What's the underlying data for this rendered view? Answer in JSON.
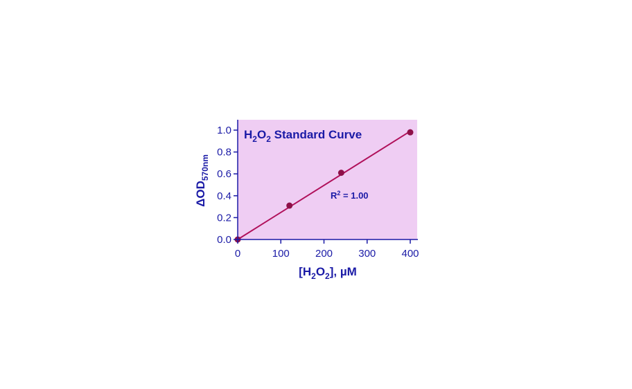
{
  "chart_data": {
    "type": "scatter",
    "title_parts": [
      {
        "text": "H"
      },
      {
        "text": "2",
        "sub": true
      },
      {
        "text": "O"
      },
      {
        "text": "2",
        "sub": true
      },
      {
        "text": " Standard Curve"
      }
    ],
    "xlabel_parts": [
      {
        "text": "[H"
      },
      {
        "text": "2",
        "sub": true
      },
      {
        "text": "O"
      },
      {
        "text": "2",
        "sub": true
      },
      {
        "text": "], µM"
      }
    ],
    "ylabel_parts": [
      {
        "text": "ΔOD"
      },
      {
        "text": "570nm",
        "sub": true
      }
    ],
    "annotation_parts": [
      {
        "text": "R"
      },
      {
        "text": "2",
        "sup": true
      },
      {
        "text": " = 1.00"
      }
    ],
    "xlim": [
      0,
      400
    ],
    "ylim": [
      0,
      1.0
    ],
    "xticks": [
      0,
      100,
      200,
      300,
      400
    ],
    "xtick_labels": [
      "0",
      "100",
      "200",
      "300",
      "400"
    ],
    "yticks": [
      0,
      0.2,
      0.4,
      0.6,
      0.8,
      1.0
    ],
    "ytick_labels": [
      "0.0",
      "0.2",
      "0.4",
      "0.6",
      "0.8",
      "1.0"
    ],
    "series": [
      {
        "points": [
          {
            "x": 0,
            "y": 0.0
          },
          {
            "x": 120,
            "y": 0.31
          },
          {
            "x": 240,
            "y": 0.61
          },
          {
            "x": 400,
            "y": 0.98
          }
        ]
      }
    ],
    "fit_line": {
      "x": [
        0,
        400
      ],
      "y": [
        0.0,
        0.99
      ]
    },
    "grid": false,
    "colors": {
      "background": "#efcdf3",
      "axis": "#1a1aa6",
      "text": "#1a1aa6",
      "line": "#b0105a",
      "marker": "#8e1048"
    }
  }
}
